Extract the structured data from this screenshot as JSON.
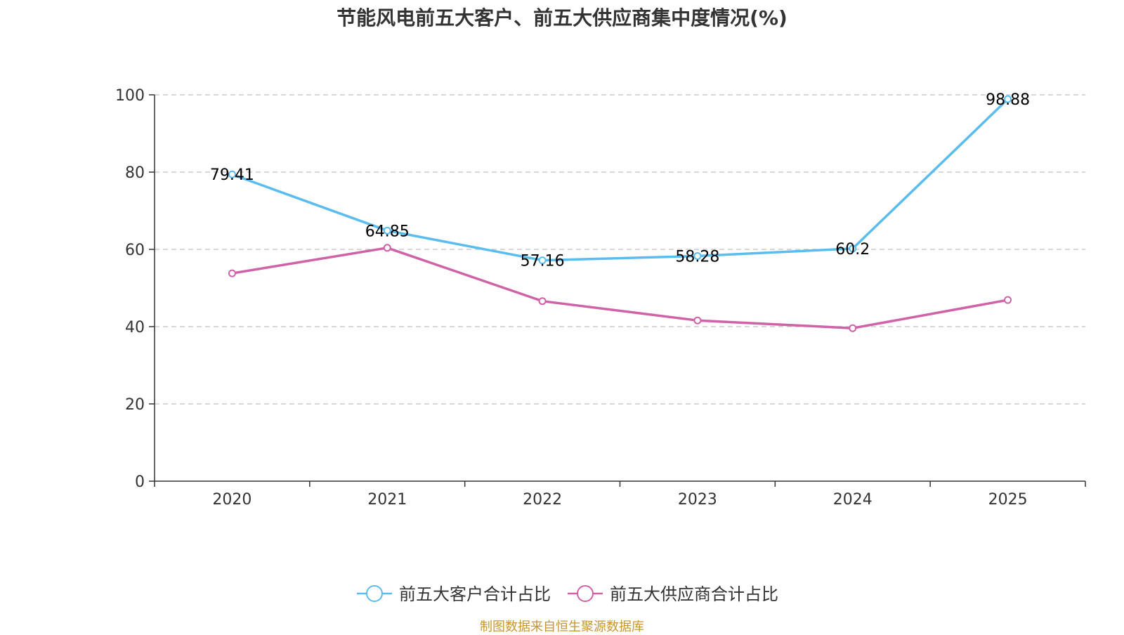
{
  "chart_data": {
    "type": "line",
    "title": "节能风电前五大客户、前五大供应商集中度情况(%)",
    "categories": [
      "2020",
      "2021",
      "2022",
      "2023",
      "2024",
      "2025"
    ],
    "ylim": [
      0,
      100
    ],
    "yticks": [
      0,
      20,
      40,
      60,
      80,
      100
    ],
    "grid": true,
    "legend_position": "bottom",
    "series": [
      {
        "name": "前五大客户合计占比",
        "color": "#5bbcf0",
        "values": [
          79.41,
          64.85,
          57.16,
          58.28,
          60.2,
          98.88
        ],
        "labels": [
          "79.41",
          "64.85",
          "57.16",
          "58.28",
          "60.2",
          "98.88"
        ]
      },
      {
        "name": "前五大供应商合计占比",
        "color": "#d063a8",
        "values": [
          53.8,
          60.4,
          46.6,
          41.6,
          39.6,
          46.9
        ]
      }
    ]
  },
  "source": {
    "text": "制图数据来自恒生聚源数据库",
    "color": "#c8962e"
  }
}
